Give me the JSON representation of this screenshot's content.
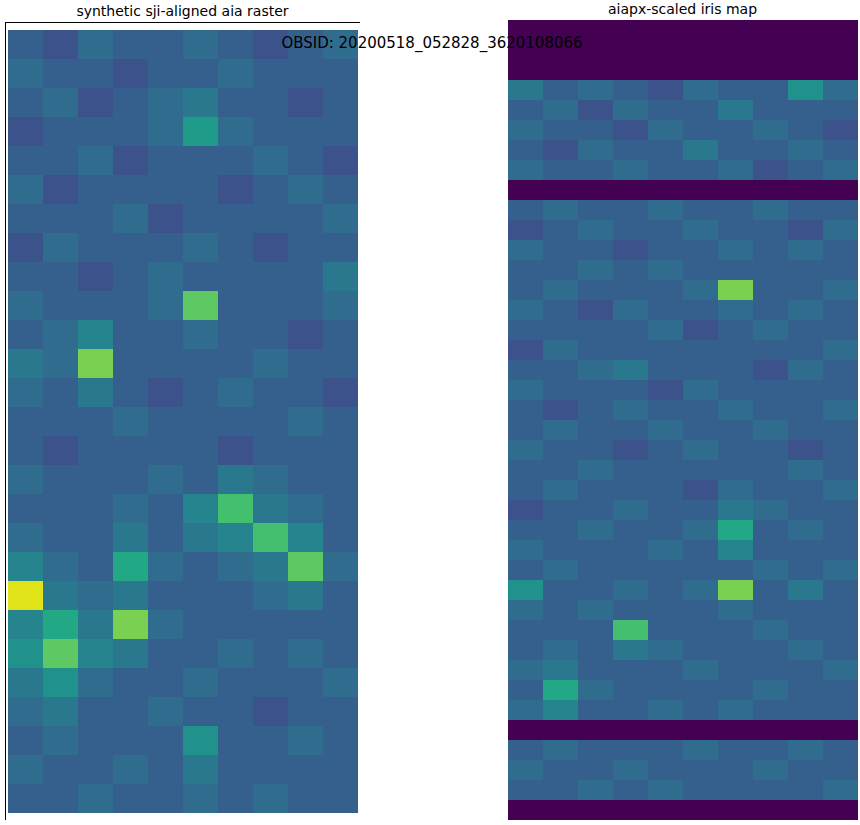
{
  "title": "OBSID: 20200518_052828_3620108066",
  "chart_data": [
    {
      "type": "heatmap",
      "title": "synthetic sji-aligned aia raster",
      "color": "viridis",
      "zlim": [
        0,
        1
      ],
      "tick_labels": false,
      "cells": [
        [
          0.3,
          0.25,
          0.35,
          0.3,
          0.3,
          0.35,
          0.3,
          0.25,
          0.3,
          0.35
        ],
        [
          0.35,
          0.3,
          0.3,
          0.25,
          0.3,
          0.3,
          0.35,
          0.3,
          0.3,
          0.3
        ],
        [
          0.3,
          0.35,
          0.25,
          0.3,
          0.35,
          0.4,
          0.3,
          0.3,
          0.25,
          0.3
        ],
        [
          0.25,
          0.3,
          0.3,
          0.3,
          0.35,
          0.55,
          0.35,
          0.3,
          0.3,
          0.3
        ],
        [
          0.3,
          0.3,
          0.35,
          0.25,
          0.3,
          0.3,
          0.3,
          0.35,
          0.3,
          0.25
        ],
        [
          0.35,
          0.25,
          0.3,
          0.3,
          0.3,
          0.3,
          0.25,
          0.3,
          0.35,
          0.3
        ],
        [
          0.3,
          0.3,
          0.3,
          0.35,
          0.25,
          0.3,
          0.3,
          0.3,
          0.3,
          0.35
        ],
        [
          0.25,
          0.35,
          0.3,
          0.3,
          0.3,
          0.35,
          0.3,
          0.25,
          0.3,
          0.3
        ],
        [
          0.3,
          0.3,
          0.25,
          0.3,
          0.35,
          0.3,
          0.3,
          0.3,
          0.3,
          0.4
        ],
        [
          0.35,
          0.3,
          0.3,
          0.3,
          0.35,
          0.75,
          0.3,
          0.3,
          0.3,
          0.35
        ],
        [
          0.3,
          0.35,
          0.45,
          0.3,
          0.3,
          0.35,
          0.3,
          0.3,
          0.25,
          0.3
        ],
        [
          0.4,
          0.35,
          0.8,
          0.3,
          0.3,
          0.3,
          0.3,
          0.35,
          0.3,
          0.3
        ],
        [
          0.35,
          0.3,
          0.4,
          0.3,
          0.25,
          0.3,
          0.35,
          0.3,
          0.3,
          0.25
        ],
        [
          0.3,
          0.3,
          0.3,
          0.35,
          0.3,
          0.3,
          0.3,
          0.3,
          0.35,
          0.3
        ],
        [
          0.3,
          0.25,
          0.3,
          0.3,
          0.3,
          0.3,
          0.25,
          0.3,
          0.3,
          0.3
        ],
        [
          0.35,
          0.3,
          0.3,
          0.3,
          0.35,
          0.3,
          0.4,
          0.35,
          0.3,
          0.3
        ],
        [
          0.3,
          0.3,
          0.3,
          0.35,
          0.3,
          0.45,
          0.7,
          0.4,
          0.35,
          0.3
        ],
        [
          0.35,
          0.3,
          0.3,
          0.4,
          0.3,
          0.4,
          0.45,
          0.7,
          0.45,
          0.3
        ],
        [
          0.45,
          0.35,
          0.3,
          0.6,
          0.35,
          0.3,
          0.35,
          0.4,
          0.75,
          0.35
        ],
        [
          0.95,
          0.4,
          0.35,
          0.4,
          0.3,
          0.3,
          0.3,
          0.35,
          0.4,
          0.3
        ],
        [
          0.45,
          0.6,
          0.4,
          0.8,
          0.35,
          0.3,
          0.3,
          0.3,
          0.3,
          0.3
        ],
        [
          0.5,
          0.75,
          0.45,
          0.4,
          0.3,
          0.3,
          0.35,
          0.3,
          0.35,
          0.3
        ],
        [
          0.4,
          0.5,
          0.35,
          0.3,
          0.3,
          0.35,
          0.3,
          0.3,
          0.3,
          0.35
        ],
        [
          0.35,
          0.4,
          0.3,
          0.3,
          0.35,
          0.3,
          0.3,
          0.25,
          0.3,
          0.3
        ],
        [
          0.3,
          0.35,
          0.3,
          0.3,
          0.3,
          0.5,
          0.3,
          0.3,
          0.35,
          0.3
        ],
        [
          0.35,
          0.3,
          0.3,
          0.35,
          0.3,
          0.4,
          0.3,
          0.3,
          0.3,
          0.3
        ],
        [
          0.3,
          0.3,
          0.35,
          0.3,
          0.3,
          0.35,
          0.3,
          0.35,
          0.3,
          0.3
        ]
      ]
    },
    {
      "type": "heatmap",
      "title": "aiapx-scaled iris map",
      "color": "viridis",
      "zlim": [
        0,
        1
      ],
      "tick_labels": false,
      "cells": [
        [
          0,
          0,
          0,
          0,
          0,
          0,
          0,
          0,
          0,
          0
        ],
        [
          0,
          0,
          0,
          0,
          0,
          0,
          0,
          0,
          0,
          0
        ],
        [
          0,
          0,
          0,
          0,
          0,
          0,
          0,
          0,
          0,
          0
        ],
        [
          0.4,
          0.3,
          0.35,
          0.3,
          0.25,
          0.35,
          0.3,
          0.3,
          0.5,
          0.35
        ],
        [
          0.3,
          0.35,
          0.25,
          0.35,
          0.3,
          0.3,
          0.4,
          0.3,
          0.3,
          0.3
        ],
        [
          0.35,
          0.3,
          0.3,
          0.25,
          0.35,
          0.3,
          0.3,
          0.35,
          0.3,
          0.25
        ],
        [
          0.3,
          0.25,
          0.35,
          0.3,
          0.3,
          0.4,
          0.3,
          0.3,
          0.35,
          0.3
        ],
        [
          0.35,
          0.3,
          0.3,
          0.35,
          0.3,
          0.3,
          0.35,
          0.25,
          0.3,
          0.35
        ],
        [
          0,
          0,
          0,
          0,
          0,
          0,
          0,
          0,
          0,
          0
        ],
        [
          0.3,
          0.35,
          0.3,
          0.3,
          0.35,
          0.3,
          0.3,
          0.35,
          0.3,
          0.3
        ],
        [
          0.25,
          0.3,
          0.35,
          0.3,
          0.3,
          0.35,
          0.3,
          0.3,
          0.25,
          0.35
        ],
        [
          0.35,
          0.3,
          0.3,
          0.25,
          0.3,
          0.3,
          0.35,
          0.3,
          0.35,
          0.3
        ],
        [
          0.3,
          0.3,
          0.35,
          0.3,
          0.35,
          0.3,
          0.3,
          0.3,
          0.3,
          0.3
        ],
        [
          0.3,
          0.35,
          0.3,
          0.3,
          0.3,
          0.35,
          0.8,
          0.3,
          0.3,
          0.35
        ],
        [
          0.35,
          0.3,
          0.25,
          0.35,
          0.3,
          0.3,
          0.35,
          0.3,
          0.35,
          0.3
        ],
        [
          0.3,
          0.3,
          0.3,
          0.3,
          0.35,
          0.25,
          0.3,
          0.35,
          0.3,
          0.3
        ],
        [
          0.25,
          0.35,
          0.3,
          0.3,
          0.3,
          0.3,
          0.3,
          0.3,
          0.3,
          0.35
        ],
        [
          0.3,
          0.3,
          0.35,
          0.4,
          0.3,
          0.3,
          0.3,
          0.25,
          0.35,
          0.3
        ],
        [
          0.35,
          0.3,
          0.3,
          0.3,
          0.25,
          0.35,
          0.3,
          0.3,
          0.3,
          0.3
        ],
        [
          0.3,
          0.25,
          0.3,
          0.35,
          0.3,
          0.3,
          0.35,
          0.3,
          0.3,
          0.35
        ],
        [
          0.3,
          0.35,
          0.3,
          0.3,
          0.35,
          0.3,
          0.3,
          0.35,
          0.3,
          0.3
        ],
        [
          0.35,
          0.3,
          0.3,
          0.25,
          0.3,
          0.35,
          0.3,
          0.3,
          0.25,
          0.3
        ],
        [
          0.3,
          0.3,
          0.35,
          0.3,
          0.3,
          0.3,
          0.3,
          0.3,
          0.35,
          0.3
        ],
        [
          0.3,
          0.35,
          0.3,
          0.3,
          0.3,
          0.25,
          0.35,
          0.3,
          0.3,
          0.35
        ],
        [
          0.25,
          0.3,
          0.3,
          0.35,
          0.3,
          0.3,
          0.4,
          0.35,
          0.3,
          0.3
        ],
        [
          0.3,
          0.3,
          0.35,
          0.3,
          0.3,
          0.35,
          0.6,
          0.3,
          0.35,
          0.3
        ],
        [
          0.35,
          0.3,
          0.3,
          0.3,
          0.35,
          0.3,
          0.45,
          0.3,
          0.3,
          0.3
        ],
        [
          0.3,
          0.35,
          0.3,
          0.3,
          0.3,
          0.3,
          0.3,
          0.35,
          0.3,
          0.35
        ],
        [
          0.5,
          0.3,
          0.3,
          0.35,
          0.3,
          0.35,
          0.8,
          0.3,
          0.4,
          0.3
        ],
        [
          0.35,
          0.3,
          0.35,
          0.3,
          0.3,
          0.3,
          0.35,
          0.3,
          0.3,
          0.3
        ],
        [
          0.3,
          0.3,
          0.3,
          0.7,
          0.3,
          0.3,
          0.3,
          0.35,
          0.3,
          0.3
        ],
        [
          0.3,
          0.35,
          0.3,
          0.4,
          0.35,
          0.3,
          0.3,
          0.3,
          0.35,
          0.3
        ],
        [
          0.35,
          0.4,
          0.3,
          0.3,
          0.3,
          0.35,
          0.3,
          0.3,
          0.3,
          0.35
        ],
        [
          0.3,
          0.6,
          0.35,
          0.3,
          0.3,
          0.3,
          0.3,
          0.35,
          0.3,
          0.3
        ],
        [
          0.35,
          0.45,
          0.3,
          0.3,
          0.35,
          0.3,
          0.35,
          0.3,
          0.3,
          0.3
        ],
        [
          0,
          0,
          0,
          0,
          0,
          0,
          0,
          0,
          0,
          0
        ],
        [
          0.3,
          0.35,
          0.3,
          0.3,
          0.3,
          0.35,
          0.3,
          0.3,
          0.35,
          0.3
        ],
        [
          0.35,
          0.3,
          0.3,
          0.35,
          0.3,
          0.3,
          0.3,
          0.35,
          0.3,
          0.3
        ],
        [
          0.3,
          0.3,
          0.35,
          0.3,
          0.35,
          0.3,
          0.3,
          0.3,
          0.3,
          0.35
        ],
        [
          0,
          0,
          0,
          0,
          0,
          0,
          0,
          0,
          0,
          0
        ]
      ]
    }
  ]
}
